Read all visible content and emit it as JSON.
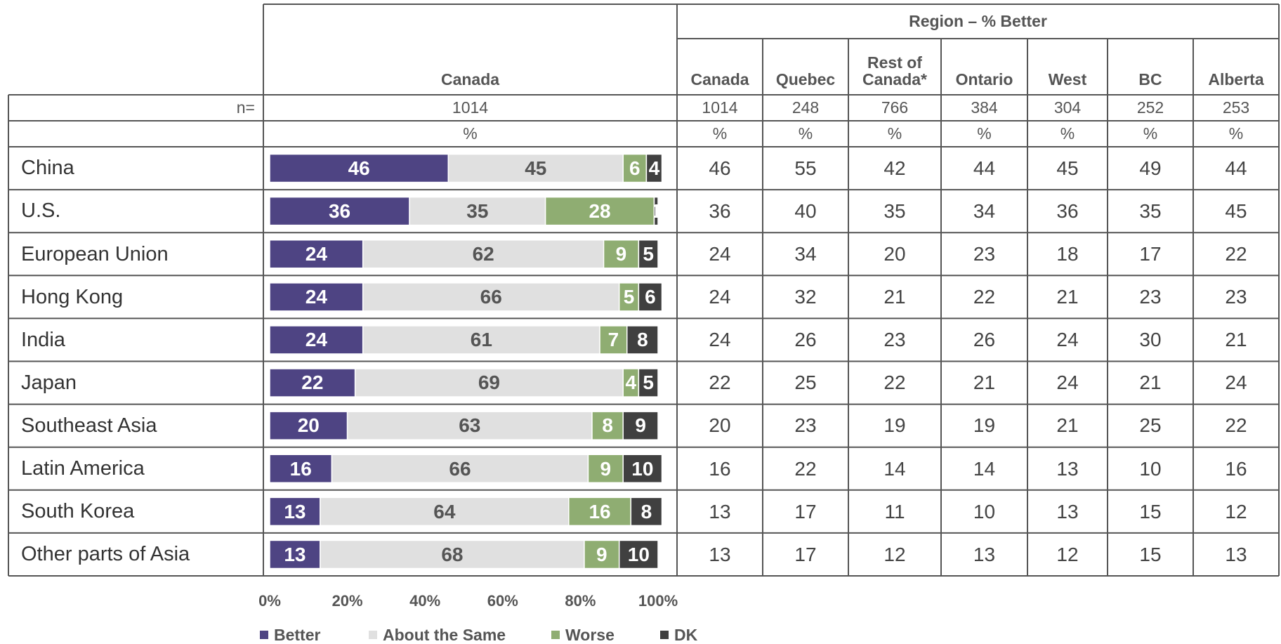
{
  "chart_data": {
    "type": "bar",
    "orientation": "horizontal",
    "stacked": true,
    "categories": [
      "China",
      "U.S.",
      "European Union",
      "Hong Kong",
      "India",
      "Japan",
      "Southeast Asia",
      "Latin America",
      "South Korea",
      "Other parts of Asia"
    ],
    "series": [
      {
        "name": "Better",
        "color": "#4e4483",
        "values": [
          46,
          36,
          24,
          24,
          24,
          22,
          20,
          16,
          13,
          13
        ]
      },
      {
        "name": "About the Same",
        "color": "#e0e0e0",
        "values": [
          45,
          35,
          62,
          66,
          61,
          69,
          63,
          66,
          64,
          68
        ]
      },
      {
        "name": "Worse",
        "color": "#8fad72",
        "values": [
          6,
          28,
          9,
          5,
          7,
          4,
          8,
          9,
          16,
          9
        ]
      },
      {
        "name": "DK",
        "color": "#404040",
        "values": [
          4,
          1,
          5,
          6,
          8,
          5,
          9,
          10,
          8,
          10
        ]
      }
    ],
    "xlim": [
      0,
      100
    ],
    "xticks": [
      {
        "value": 0,
        "label": "0%"
      },
      {
        "value": 20,
        "label": "20%"
      },
      {
        "value": 40,
        "label": "40%"
      },
      {
        "value": 60,
        "label": "60%"
      },
      {
        "value": 80,
        "label": "80%"
      },
      {
        "value": 100,
        "label": "100%"
      }
    ],
    "legend": "bottom"
  },
  "table": {
    "chart_column": "Canada",
    "group_header": "Region – % Better",
    "columns": [
      "Canada",
      "Quebec",
      "Rest of Canada*",
      "Ontario",
      "West",
      "BC",
      "Alberta"
    ],
    "n_label": "n=",
    "n_total": 1014,
    "n": [
      1014,
      248,
      766,
      384,
      304,
      252,
      253
    ],
    "unit_label": "%",
    "rows": [
      [
        46,
        55,
        42,
        44,
        45,
        49,
        44
      ],
      [
        36,
        40,
        35,
        34,
        36,
        35,
        45
      ],
      [
        24,
        34,
        20,
        23,
        18,
        17,
        22
      ],
      [
        24,
        32,
        21,
        22,
        21,
        23,
        23
      ],
      [
        24,
        26,
        23,
        26,
        24,
        30,
        21
      ],
      [
        22,
        25,
        22,
        21,
        24,
        21,
        24
      ],
      [
        20,
        23,
        19,
        19,
        21,
        25,
        22
      ],
      [
        16,
        22,
        14,
        14,
        13,
        10,
        16
      ],
      [
        13,
        17,
        11,
        10,
        13,
        15,
        12
      ],
      [
        13,
        17,
        12,
        13,
        12,
        15,
        13
      ]
    ]
  }
}
